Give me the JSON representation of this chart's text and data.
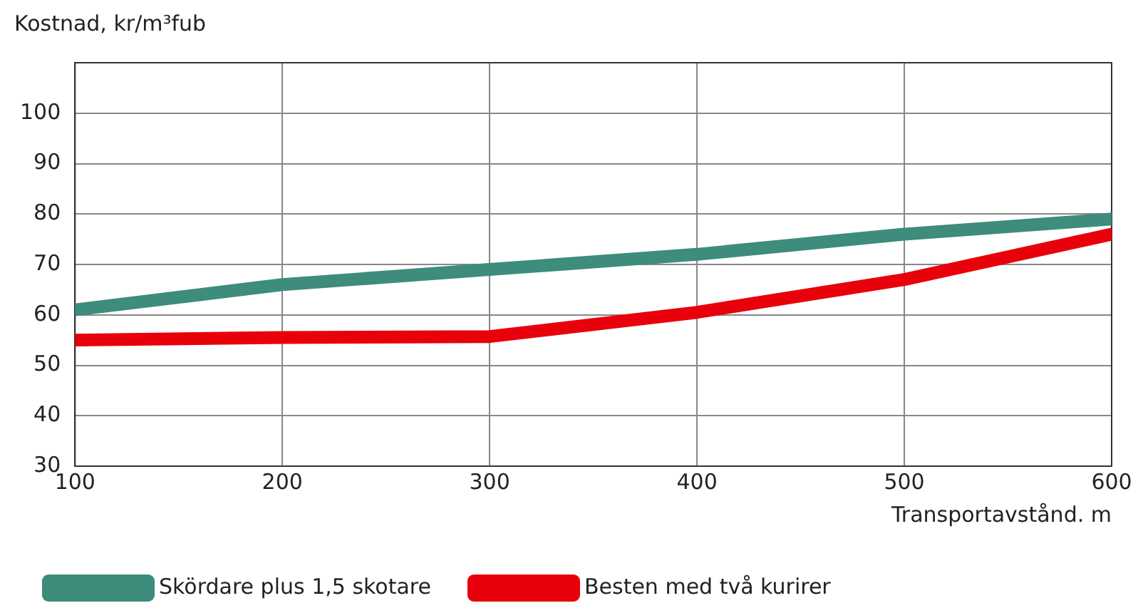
{
  "chart_data": {
    "type": "line",
    "xlabel": "Transportavstånd. m",
    "ylabel": "Kostnad, kr/m³fub",
    "x": [
      100,
      200,
      300,
      400,
      500,
      600
    ],
    "series": [
      {
        "name": "Skördare plus 1,5 skotare",
        "color": "#3d8c7c",
        "values": [
          61,
          66,
          69,
          72,
          76,
          79
        ]
      },
      {
        "name": "Besten med två kurirer",
        "color": "#e8000b",
        "values": [
          55,
          55.5,
          55.7,
          60.5,
          67,
          76
        ]
      }
    ],
    "xlim": [
      100,
      600
    ],
    "xticks": [
      100,
      200,
      300,
      400,
      500,
      600
    ],
    "ylim": [
      30,
      110
    ],
    "yticks": [
      30,
      40,
      50,
      60,
      70,
      80,
      90,
      100
    ],
    "grid": true,
    "legend": "bottom",
    "marker": "none",
    "line_style": "solid"
  }
}
